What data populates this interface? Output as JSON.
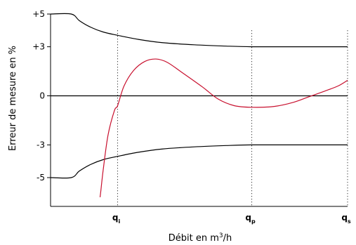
{
  "chart_data": {
    "type": "line",
    "xlabel": {
      "prefix": "Débit en m",
      "sup": "3",
      "suffix": "/h"
    },
    "ylabel": "Erreur de mesure en %",
    "y_ticks": [
      {
        "value": 5,
        "label": "+5"
      },
      {
        "value": 3,
        "label": "+3"
      },
      {
        "value": 0,
        "label": "0"
      },
      {
        "value": -3,
        "label": "-3"
      },
      {
        "value": -5,
        "label": "-5"
      }
    ],
    "x_ticks": [
      {
        "value": 0.42,
        "main": "q",
        "sub": "i"
      },
      {
        "value": 1.26,
        "main": "q",
        "sub": "p"
      },
      {
        "value": 1.86,
        "main": "q",
        "sub": "s"
      }
    ],
    "xlim": [
      0,
      1.86
    ],
    "ylim": [
      -6.2,
      5.8
    ],
    "series": [
      {
        "color": "#000000",
        "points": [
          [
            0,
            5
          ],
          [
            0.13,
            5
          ],
          [
            0.18,
            4.6
          ],
          [
            0.25,
            4.2
          ],
          [
            0.33,
            3.9
          ],
          [
            0.42,
            3.7
          ],
          [
            0.55,
            3.45
          ],
          [
            0.7,
            3.25
          ],
          [
            0.9,
            3.12
          ],
          [
            1.1,
            3.04
          ],
          [
            1.26,
            3.0
          ],
          [
            1.5,
            3.0
          ],
          [
            1.86,
            3.0
          ]
        ]
      },
      {
        "color": "#000000",
        "points": [
          [
            0,
            -5
          ],
          [
            0.13,
            -5
          ],
          [
            0.18,
            -4.6
          ],
          [
            0.25,
            -4.2
          ],
          [
            0.33,
            -3.9
          ],
          [
            0.42,
            -3.7
          ],
          [
            0.55,
            -3.45
          ],
          [
            0.7,
            -3.25
          ],
          [
            0.9,
            -3.12
          ],
          [
            1.1,
            -3.04
          ],
          [
            1.26,
            -3.0
          ],
          [
            1.5,
            -3.0
          ],
          [
            1.86,
            -3.0
          ]
        ]
      },
      {
        "color": "#000000",
        "points": [
          [
            0,
            0
          ],
          [
            1.86,
            0
          ]
        ]
      },
      {
        "color": "#c8102e",
        "points": [
          [
            0.31,
            -6.2
          ],
          [
            0.315,
            -5.8
          ],
          [
            0.33,
            -4.5
          ],
          [
            0.36,
            -2.4
          ],
          [
            0.4,
            -0.9
          ],
          [
            0.42,
            -0.6
          ],
          [
            0.46,
            0.6
          ],
          [
            0.52,
            1.55
          ],
          [
            0.59,
            2.1
          ],
          [
            0.66,
            2.25
          ],
          [
            0.73,
            2.05
          ],
          [
            0.82,
            1.45
          ],
          [
            0.95,
            0.55
          ],
          [
            1.05,
            -0.2
          ],
          [
            1.15,
            -0.6
          ],
          [
            1.26,
            -0.7
          ],
          [
            1.4,
            -0.65
          ],
          [
            1.52,
            -0.4
          ],
          [
            1.62,
            -0.05
          ],
          [
            1.72,
            0.3
          ],
          [
            1.8,
            0.6
          ],
          [
            1.86,
            0.95
          ]
        ]
      }
    ],
    "grid": false,
    "reference_lines": "dotted vertical lines at q_i, q_p, q_s"
  }
}
